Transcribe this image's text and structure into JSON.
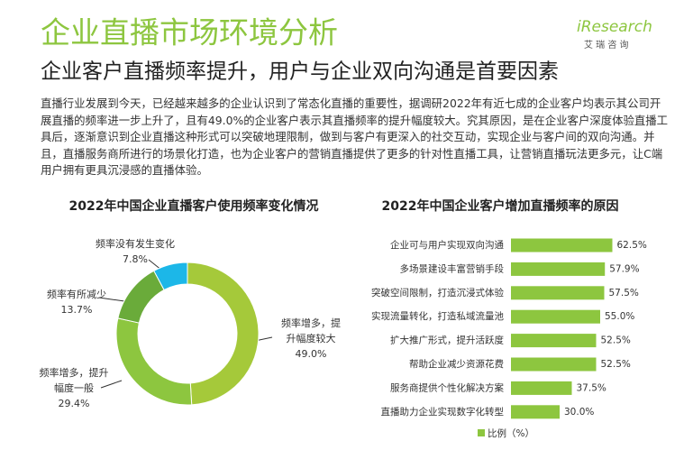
{
  "header": {
    "title": "企业直播市场环境分析",
    "subtitle": "企业客户直播频率提升，用户与企业双向沟通是首要因素",
    "paragraph": "直播行业发展到今天，已经越来越多的企业认识到了常态化直播的重要性，据调研2022年有近七成的企业客户均表示其公司开展直播的频率进一步上升了，且有49.0%的企业客户表示其直播频率的提升幅度较大。究其原因，是在企业客户深度体验直播工具后，逐渐意识到企业直播这种形式可以突破地理限制，做到与客户有更深入的社交互动，实现企业与客户间的双向沟通。并且，直播服务商所进行的场景化打造，也为企业客户的营销直播提供了更多的针对性直播工具，让营销直播玩法更多元，让C端用户拥有更具沉浸感的直播体验。",
    "logo": "iResearch",
    "logo_sub": "艾 瑞 咨 询"
  },
  "chart_data": [
    {
      "type": "donut",
      "title": "2022年中国企业直播客户使用频率变化情况",
      "categories": [
        "频率增多，提升幅度较大",
        "频率增多，提升幅度一般",
        "频率有所减少",
        "频率没有发生变化"
      ],
      "values": [
        49.0,
        29.4,
        13.7,
        7.8
      ],
      "value_labels": [
        "49.0%",
        "29.4%",
        "13.7%",
        "7.8%"
      ],
      "colors": [
        "#a5c93a",
        "#8dc63f",
        "#6aab3a",
        "#1cb7e8"
      ]
    },
    {
      "type": "hbar",
      "title": "2022年中国企业客户增加直播频率的原因",
      "categories": [
        "企业可与用户实现双向沟通",
        "多场景建设丰富营销手段",
        "突破空间限制，打造沉浸式体验",
        "实现流量转化，打造私域流量池",
        "扩大推广形式，提升活跃度",
        "帮助企业减少资源花费",
        "服务商提供个性化解决方案",
        "直播助力企业实现数字化转型"
      ],
      "series": [
        {
          "name": "比例（%）",
          "color": "#8dc63f",
          "values": [
            62.5,
            57.9,
            57.5,
            55.0,
            52.5,
            52.5,
            37.5,
            30.0
          ],
          "value_labels": [
            "62.5%",
            "57.9%",
            "57.5%",
            "55.0%",
            "52.5%",
            "52.5%",
            "37.5%",
            "30.0%"
          ]
        }
      ]
    }
  ]
}
